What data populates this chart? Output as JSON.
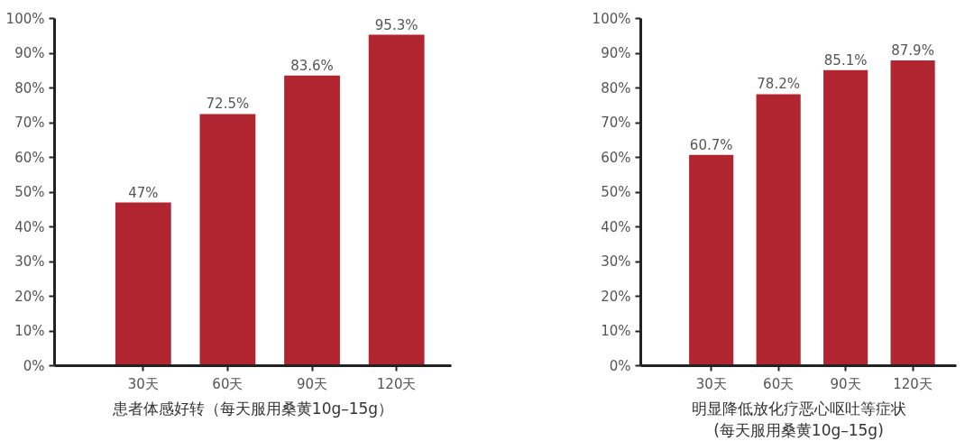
{
  "chart_data": [
    {
      "type": "bar",
      "xlabel": "患者体感好转（每天服用桑黄10g–15g）",
      "categories": [
        "30天",
        "60天",
        "90天",
        "120天"
      ],
      "values": [
        47,
        72.5,
        83.6,
        95.3
      ],
      "value_labels": [
        "47%",
        "72.5%",
        "83.6%",
        "95.3%"
      ],
      "color": "#b0252f",
      "ylim": [
        0,
        100
      ],
      "yticks": [
        {
          "value": 0,
          "label": "0%"
        },
        {
          "value": 10,
          "label": "10%"
        },
        {
          "value": 20,
          "label": "20%"
        },
        {
          "value": 30,
          "label": "30%"
        },
        {
          "value": 40,
          "label": "40%"
        },
        {
          "value": 50,
          "label": "50%"
        },
        {
          "value": 60,
          "label": "60%"
        },
        {
          "value": 70,
          "label": "70%"
        },
        {
          "value": 80,
          "label": "80%"
        },
        {
          "value": 90,
          "label": "90%"
        },
        {
          "value": 100,
          "label": "100%"
        }
      ],
      "grid": false
    },
    {
      "type": "bar",
      "xlabel": "明显降低放化疗恶心呕吐等症状\n(每天服用桑黄10g–15g)",
      "categories": [
        "30天",
        "60天",
        "90天",
        "120天"
      ],
      "values": [
        60.7,
        78.2,
        85.1,
        87.9
      ],
      "value_labels": [
        "60.7%",
        "78.2%",
        "85.1%",
        "87.9%"
      ],
      "color": "#b0252f",
      "ylim": [
        0,
        100
      ],
      "yticks": [
        {
          "value": 0,
          "label": "0%"
        },
        {
          "value": 10,
          "label": "10%"
        },
        {
          "value": 20,
          "label": "20%"
        },
        {
          "value": 30,
          "label": "30%"
        },
        {
          "value": 40,
          "label": "40%"
        },
        {
          "value": 50,
          "label": "50%"
        },
        {
          "value": 60,
          "label": "60%"
        },
        {
          "value": 70,
          "label": "70%"
        },
        {
          "value": 80,
          "label": "80%"
        },
        {
          "value": 90,
          "label": "90%"
        },
        {
          "value": 100,
          "label": "100%"
        }
      ],
      "grid": false
    }
  ]
}
